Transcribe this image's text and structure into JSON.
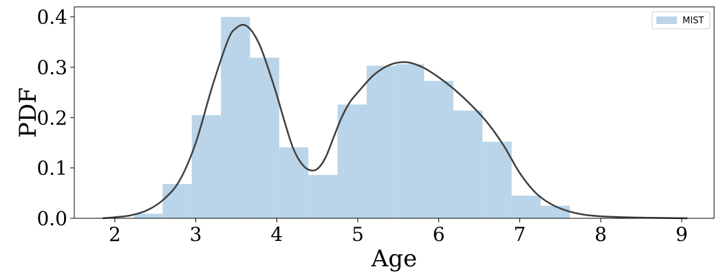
{
  "chart_data": {
    "type": "bar",
    "title": "",
    "xlabel": "Age",
    "ylabel": "PDF",
    "xlim": [
      1.5,
      9.4
    ],
    "ylim": [
      0,
      0.42
    ],
    "xticks": [
      2,
      3,
      4,
      5,
      6,
      7,
      8,
      9
    ],
    "yticks": [
      0.0,
      0.1,
      0.2,
      0.3,
      0.4
    ],
    "ytick_labels": [
      "0.0",
      "0.1",
      "0.2",
      "0.3",
      "0.4"
    ],
    "grid": false,
    "legend": {
      "placement": "top-right",
      "entries": [
        "MIST"
      ]
    },
    "colors": {
      "hist": "#bad5e9",
      "kde": "#404040"
    },
    "series": [
      {
        "name": "MIST",
        "kind": "histogram",
        "bins": [
          {
            "x0": 2.24,
            "x1": 2.59,
            "value": 0.009
          },
          {
            "x0": 2.59,
            "x1": 2.95,
            "value": 0.068
          },
          {
            "x0": 2.95,
            "x1": 3.31,
            "value": 0.205
          },
          {
            "x0": 3.31,
            "x1": 3.67,
            "value": 0.4
          },
          {
            "x0": 3.67,
            "x1": 4.03,
            "value": 0.319
          },
          {
            "x0": 4.03,
            "x1": 4.39,
            "value": 0.141
          },
          {
            "x0": 4.39,
            "x1": 4.75,
            "value": 0.086
          },
          {
            "x0": 4.75,
            "x1": 5.11,
            "value": 0.226
          },
          {
            "x0": 5.11,
            "x1": 5.47,
            "value": 0.303
          },
          {
            "x0": 5.47,
            "x1": 5.82,
            "value": 0.306
          },
          {
            "x0": 5.82,
            "x1": 6.18,
            "value": 0.273
          },
          {
            "x0": 6.18,
            "x1": 6.54,
            "value": 0.214
          },
          {
            "x0": 6.54,
            "x1": 6.9,
            "value": 0.152
          },
          {
            "x0": 6.9,
            "x1": 7.26,
            "value": 0.045
          },
          {
            "x0": 7.26,
            "x1": 7.62,
            "value": 0.025
          }
        ]
      },
      {
        "kind": "kde",
        "x": [
          1.85,
          2.0,
          2.2,
          2.4,
          2.6,
          2.8,
          3.0,
          3.2,
          3.4,
          3.5,
          3.6,
          3.7,
          3.8,
          3.9,
          4.0,
          4.1,
          4.2,
          4.3,
          4.4,
          4.5,
          4.6,
          4.7,
          4.8,
          4.9,
          5.0,
          5.2,
          5.4,
          5.6,
          5.8,
          6.0,
          6.2,
          6.4,
          6.6,
          6.8,
          7.0,
          7.2,
          7.4,
          7.6,
          7.8,
          8.0,
          8.3,
          8.6,
          9.07
        ],
        "y": [
          0.0,
          0.002,
          0.006,
          0.016,
          0.037,
          0.075,
          0.15,
          0.26,
          0.355,
          0.378,
          0.384,
          0.37,
          0.34,
          0.295,
          0.245,
          0.19,
          0.14,
          0.11,
          0.096,
          0.098,
          0.12,
          0.16,
          0.2,
          0.23,
          0.25,
          0.285,
          0.305,
          0.31,
          0.3,
          0.28,
          0.255,
          0.225,
          0.19,
          0.145,
          0.09,
          0.05,
          0.027,
          0.014,
          0.007,
          0.004,
          0.002,
          0.001,
          0.0
        ]
      }
    ]
  }
}
